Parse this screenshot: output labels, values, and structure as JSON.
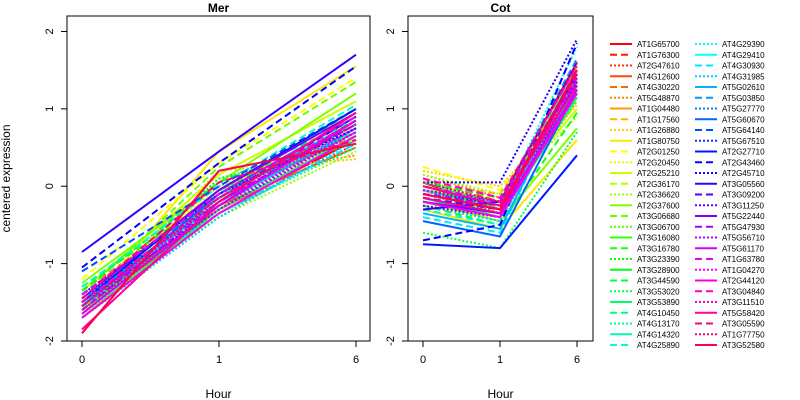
{
  "chart_data": {
    "type": "line",
    "ylabel": "centered expression",
    "xlabel": "Hour",
    "x_ticks": [
      "0",
      "1",
      "6"
    ],
    "y_ticks": [
      -2,
      -1,
      0,
      1,
      2
    ],
    "ylim": [
      -2.0,
      2.2
    ],
    "panels": [
      {
        "title": "Mer",
        "x_scale": "1:1:6"
      },
      {
        "title": "Cot",
        "x_scale": "equal"
      }
    ],
    "series": [
      {
        "name": "AT1G65700",
        "color": "#ff0000",
        "dash": "solid",
        "mer": [
          -1.55,
          -0.3,
          0.6
        ],
        "cot": [
          0.05,
          -0.3,
          1.3
        ]
      },
      {
        "name": "AT1G76300",
        "color": "#ff1a00",
        "dash": "dashed",
        "mer": [
          -1.45,
          -0.2,
          0.75
        ],
        "cot": [
          0.0,
          -0.25,
          1.45
        ]
      },
      {
        "name": "AT2G47610",
        "color": "#ff3300",
        "dash": "dotted",
        "mer": [
          -1.6,
          -0.35,
          0.55
        ],
        "cot": [
          -0.05,
          -0.35,
          1.2
        ]
      },
      {
        "name": "AT4G12600",
        "color": "#ff4d00",
        "dash": "solid",
        "mer": [
          -1.7,
          -0.25,
          0.5
        ],
        "cot": [
          -0.1,
          -0.3,
          1.35
        ]
      },
      {
        "name": "AT4G30220",
        "color": "#ff6600",
        "dash": "dashed",
        "mer": [
          -1.35,
          -0.15,
          0.65
        ],
        "cot": [
          0.1,
          -0.2,
          1.55
        ]
      },
      {
        "name": "AT5G48870",
        "color": "#ff8000",
        "dash": "dotted",
        "mer": [
          -1.5,
          0.1,
          0.4
        ],
        "cot": [
          0.15,
          -0.15,
          1.1
        ]
      },
      {
        "name": "AT1G04480",
        "color": "#ff9900",
        "dash": "solid",
        "mer": [
          -1.65,
          -0.1,
          0.8
        ],
        "cot": [
          -0.15,
          -0.4,
          1.25
        ]
      },
      {
        "name": "AT1G17560",
        "color": "#ffb300",
        "dash": "dashed",
        "mer": [
          -1.4,
          -0.05,
          0.7
        ],
        "cot": [
          0.05,
          -0.1,
          1.4
        ]
      },
      {
        "name": "AT1G26880",
        "color": "#ffcc00",
        "dash": "dotted",
        "mer": [
          -1.55,
          0.2,
          0.35
        ],
        "cot": [
          0.2,
          0.0,
          1.05
        ]
      },
      {
        "name": "AT1G80750",
        "color": "#ffe600",
        "dash": "solid",
        "mer": [
          -1.6,
          0.45,
          1.55
        ],
        "cot": [
          -0.3,
          -0.55,
          0.6
        ]
      },
      {
        "name": "AT2G01250",
        "color": "#ffff00",
        "dash": "dashed",
        "mer": [
          -1.2,
          0.3,
          1.4
        ],
        "cot": [
          0.25,
          -0.05,
          1.15
        ]
      },
      {
        "name": "AT2G20450",
        "color": "#e6ff00",
        "dash": "dotted",
        "mer": [
          -1.45,
          0.0,
          0.6
        ],
        "cot": [
          0.1,
          -0.25,
          1.3
        ]
      },
      {
        "name": "AT2G25210",
        "color": "#ccff00",
        "dash": "solid",
        "mer": [
          -1.35,
          0.15,
          1.1
        ],
        "cot": [
          -0.05,
          -0.2,
          1.0
        ]
      },
      {
        "name": "AT2G36170",
        "color": "#b3ff00",
        "dash": "dashed",
        "mer": [
          -1.5,
          -0.2,
          0.7
        ],
        "cot": [
          0.0,
          -0.3,
          1.2
        ]
      },
      {
        "name": "AT2G36620",
        "color": "#99ff00",
        "dash": "dotted",
        "mer": [
          -1.6,
          -0.4,
          0.45
        ],
        "cot": [
          0.15,
          -0.1,
          0.9
        ]
      },
      {
        "name": "AT2G37600",
        "color": "#80ff00",
        "dash": "solid",
        "mer": [
          -1.25,
          0.05,
          1.2
        ],
        "cot": [
          -0.2,
          -0.45,
          0.75
        ]
      },
      {
        "name": "AT3G06680",
        "color": "#66ff00",
        "dash": "dashed",
        "mer": [
          -1.4,
          0.25,
          1.35
        ],
        "cot": [
          0.05,
          -0.15,
          1.35
        ]
      },
      {
        "name": "AT3G06700",
        "color": "#4dff00",
        "dash": "dotted",
        "mer": [
          -1.55,
          -0.15,
          0.9
        ],
        "cot": [
          -0.1,
          -0.35,
          1.1
        ]
      },
      {
        "name": "AT3G16080",
        "color": "#33ff00",
        "dash": "solid",
        "mer": [
          -1.7,
          -0.3,
          0.65
        ],
        "cot": [
          0.0,
          -0.2,
          1.25
        ]
      },
      {
        "name": "AT3G16780",
        "color": "#1aff00",
        "dash": "dashed",
        "mer": [
          -1.3,
          -0.1,
          1.0
        ],
        "cot": [
          -0.25,
          -0.5,
          0.95
        ]
      },
      {
        "name": "AT3G23390",
        "color": "#00ff00",
        "dash": "dotted",
        "mer": [
          -1.5,
          0.1,
          0.55
        ],
        "cot": [
          0.1,
          -0.3,
          1.4
        ]
      },
      {
        "name": "AT3G28900",
        "color": "#00ff1a",
        "dash": "solid",
        "mer": [
          -1.6,
          -0.25,
          0.75
        ],
        "cot": [
          -0.05,
          -0.25,
          1.2
        ]
      },
      {
        "name": "AT3G44590",
        "color": "#00ff33",
        "dash": "dashed",
        "mer": [
          -1.35,
          0.05,
          0.85
        ],
        "cot": [
          0.05,
          -0.15,
          1.3
        ]
      },
      {
        "name": "AT3G53020",
        "color": "#00ff4d",
        "dash": "dotted",
        "mer": [
          -1.45,
          -0.05,
          0.6
        ],
        "cot": [
          -0.6,
          -0.8,
          0.7
        ]
      },
      {
        "name": "AT3G53890",
        "color": "#00ff66",
        "dash": "solid",
        "mer": [
          -1.55,
          -0.2,
          0.95
        ],
        "cot": [
          -0.15,
          -0.4,
          1.15
        ]
      },
      {
        "name": "AT4G10450",
        "color": "#00ff80",
        "dash": "dashed",
        "mer": [
          -1.4,
          -0.1,
          0.7
        ],
        "cot": [
          0.0,
          -0.2,
          1.5
        ]
      },
      {
        "name": "AT4G13170",
        "color": "#00ff99",
        "dash": "dotted",
        "mer": [
          -1.65,
          -0.35,
          0.5
        ],
        "cot": [
          -0.1,
          -0.3,
          1.25
        ]
      },
      {
        "name": "AT4G14320",
        "color": "#00ffb3",
        "dash": "solid",
        "mer": [
          -1.5,
          -0.15,
          0.8
        ],
        "cot": [
          -0.2,
          -0.35,
          1.35
        ]
      },
      {
        "name": "AT4G25890",
        "color": "#00ffcc",
        "dash": "dashed",
        "mer": [
          -1.3,
          0.0,
          1.05
        ],
        "cot": [
          -0.3,
          -0.5,
          1.6
        ]
      },
      {
        "name": "AT4G29390",
        "color": "#00ffe6",
        "dash": "dotted",
        "mer": [
          -1.6,
          -0.3,
          0.65
        ],
        "cot": [
          0.05,
          -0.25,
          1.8
        ]
      },
      {
        "name": "AT4G29410",
        "color": "#00ffff",
        "dash": "solid",
        "mer": [
          -1.45,
          -0.25,
          0.75
        ],
        "cot": [
          -0.05,
          -0.3,
          1.2
        ]
      },
      {
        "name": "AT4G30930",
        "color": "#00e6ff",
        "dash": "dashed",
        "mer": [
          -1.55,
          -0.35,
          0.55
        ],
        "cot": [
          -0.4,
          -0.6,
          1.45
        ]
      },
      {
        "name": "AT4G31985",
        "color": "#00ccff",
        "dash": "dotted",
        "mer": [
          -1.7,
          -0.4,
          0.6
        ],
        "cot": [
          -0.25,
          -0.45,
          1.3
        ]
      },
      {
        "name": "AT5G02610",
        "color": "#00b3ff",
        "dash": "solid",
        "mer": [
          -1.5,
          -0.2,
          0.7
        ],
        "cot": [
          -0.35,
          -0.55,
          1.4
        ]
      },
      {
        "name": "AT5G03850",
        "color": "#0099ff",
        "dash": "dashed",
        "mer": [
          -1.4,
          -0.15,
          0.85
        ],
        "cot": [
          -0.1,
          -0.2,
          1.65
        ]
      },
      {
        "name": "AT5G27770",
        "color": "#0080ff",
        "dash": "dotted",
        "mer": [
          -1.6,
          -0.3,
          0.75
        ],
        "cot": [
          -0.2,
          -0.4,
          1.2
        ]
      },
      {
        "name": "AT5G60670",
        "color": "#0066ff",
        "dash": "solid",
        "mer": [
          -1.55,
          -0.1,
          0.9
        ],
        "cot": [
          -0.45,
          -0.65,
          1.25
        ]
      },
      {
        "name": "AT5G64140",
        "color": "#004dff",
        "dash": "dashed",
        "mer": [
          -1.1,
          0.0,
          1.0
        ],
        "cot": [
          -0.15,
          -0.35,
          1.5
        ]
      },
      {
        "name": "AT5G67510",
        "color": "#0033ff",
        "dash": "dotted",
        "mer": [
          -1.45,
          -0.2,
          0.8
        ],
        "cot": [
          -0.05,
          -0.25,
          1.35
        ]
      },
      {
        "name": "AT2G27710",
        "color": "#001aff",
        "dash": "solid",
        "mer": [
          -1.5,
          -0.05,
          1.0
        ],
        "cot": [
          -0.75,
          -0.8,
          0.4
        ]
      },
      {
        "name": "AT2G43460",
        "color": "#0000ff",
        "dash": "dashed",
        "mer": [
          -1.05,
          0.3,
          1.55
        ],
        "cot": [
          -0.7,
          -0.5,
          1.85
        ]
      },
      {
        "name": "AT2G45710",
        "color": "#1a00ff",
        "dash": "dotted",
        "mer": [
          -1.4,
          -0.1,
          0.75
        ],
        "cot": [
          0.05,
          0.05,
          1.9
        ]
      },
      {
        "name": "AT3G05560",
        "color": "#3300ff",
        "dash": "solid",
        "mer": [
          -0.85,
          0.45,
          1.7
        ],
        "cot": [
          -0.3,
          -0.2,
          1.6
        ]
      },
      {
        "name": "AT3G09200",
        "color": "#4d00ff",
        "dash": "dashed",
        "mer": [
          -1.5,
          -0.15,
          0.9
        ],
        "cot": [
          -0.15,
          -0.3,
          1.45
        ]
      },
      {
        "name": "AT3G11250",
        "color": "#6600ff",
        "dash": "dotted",
        "mer": [
          -1.55,
          -0.25,
          0.85
        ],
        "cot": [
          -0.25,
          -0.4,
          1.35
        ]
      },
      {
        "name": "AT5G22440",
        "color": "#8000ff",
        "dash": "solid",
        "mer": [
          -1.45,
          -0.05,
          0.95
        ],
        "cot": [
          -0.2,
          -0.35,
          1.5
        ]
      },
      {
        "name": "AT5G47930",
        "color": "#9900ff",
        "dash": "dashed",
        "mer": [
          -1.6,
          -0.2,
          0.8
        ],
        "cot": [
          -0.1,
          -0.25,
          1.4
        ]
      },
      {
        "name": "AT5G56710",
        "color": "#b300ff",
        "dash": "dotted",
        "mer": [
          -1.5,
          -0.3,
          0.7
        ],
        "cot": [
          -0.05,
          -0.2,
          1.3
        ]
      },
      {
        "name": "AT5G61170",
        "color": "#cc00ff",
        "dash": "solid",
        "mer": [
          -1.65,
          -0.25,
          0.85
        ],
        "cot": [
          -0.15,
          -0.35,
          1.25
        ]
      },
      {
        "name": "AT1G63780",
        "color": "#e600ff",
        "dash": "dashed",
        "mer": [
          -1.4,
          -0.1,
          0.9
        ],
        "cot": [
          0.0,
          -0.2,
          1.45
        ]
      },
      {
        "name": "AT1G04270",
        "color": "#ff00ff",
        "dash": "dotted",
        "mer": [
          -1.55,
          -0.2,
          0.75
        ],
        "cot": [
          -0.1,
          -0.3,
          1.35
        ]
      },
      {
        "name": "AT2G44120",
        "color": "#ff00e6",
        "dash": "solid",
        "mer": [
          -1.7,
          -0.35,
          0.65
        ],
        "cot": [
          -0.2,
          -0.4,
          1.2
        ]
      },
      {
        "name": "AT3G04840",
        "color": "#ff00cc",
        "dash": "dashed",
        "mer": [
          -1.5,
          -0.15,
          0.85
        ],
        "cot": [
          0.1,
          -0.15,
          1.55
        ]
      },
      {
        "name": "AT3G11510",
        "color": "#ff00b3",
        "dash": "dotted",
        "mer": [
          -1.6,
          -0.25,
          0.7
        ],
        "cot": [
          -0.05,
          -0.3,
          1.4
        ]
      },
      {
        "name": "AT5G58420",
        "color": "#ff0099",
        "dash": "solid",
        "mer": [
          -1.85,
          -0.2,
          0.95
        ],
        "cot": [
          0.0,
          -0.25,
          1.3
        ]
      },
      {
        "name": "AT3G05590",
        "color": "#ff0080",
        "dash": "dashed",
        "mer": [
          -1.45,
          0.05,
          0.6
        ],
        "cot": [
          -0.15,
          -0.35,
          1.45
        ]
      },
      {
        "name": "AT1G77750",
        "color": "#ff0066",
        "dash": "dotted",
        "mer": [
          -1.55,
          -0.15,
          0.8
        ],
        "cot": [
          0.05,
          -0.2,
          1.6
        ]
      },
      {
        "name": "AT3G52580",
        "color": "#ff004d",
        "dash": "solid",
        "mer": [
          -1.9,
          0.2,
          0.55
        ],
        "cot": [
          -0.1,
          -0.3,
          1.5
        ]
      }
    ]
  }
}
